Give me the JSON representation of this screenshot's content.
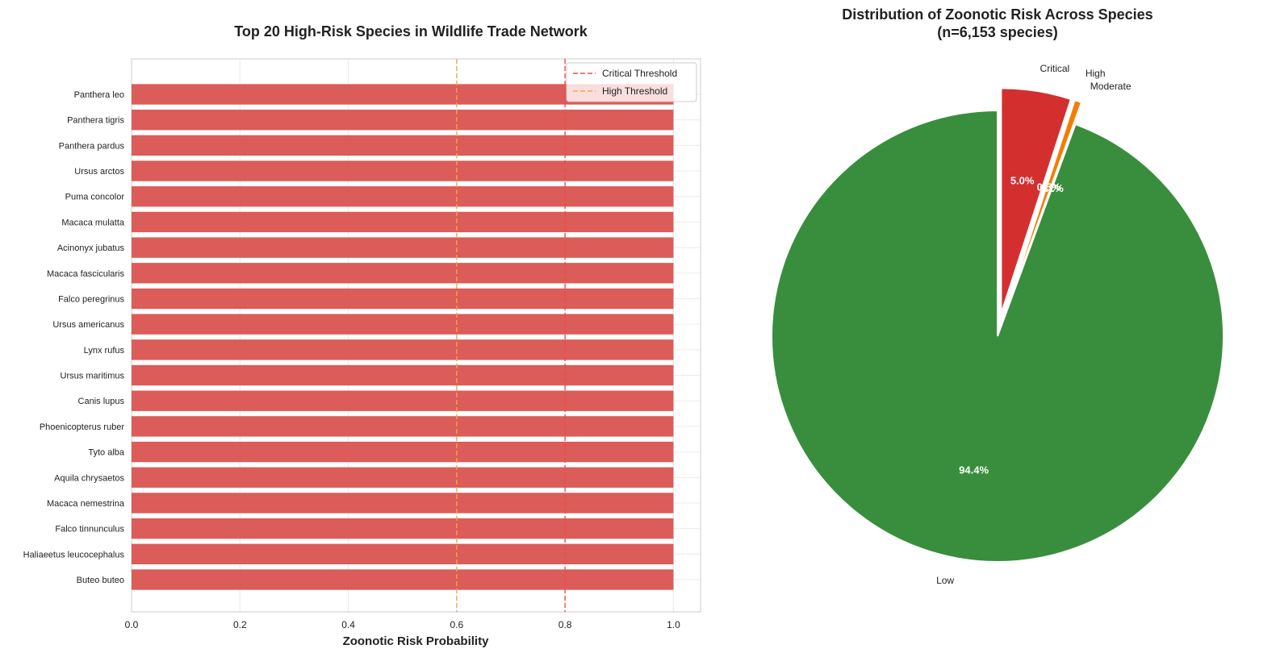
{
  "chart_data": [
    {
      "type": "bar",
      "orientation": "horizontal",
      "title": "Top 20 High-Risk Species in Wildlife Trade Network",
      "xlabel": "Zoonotic Risk Probability",
      "ylabel": "",
      "xlim": [
        0,
        1.05
      ],
      "xticks": [
        "0.0",
        "0.2",
        "0.4",
        "0.6",
        "0.8",
        "1.0"
      ],
      "grid": true,
      "legend_position": "top-right",
      "bar_color": "#d9534f",
      "categories": [
        "Panthera leo",
        "Panthera tigris",
        "Panthera pardus",
        "Ursus arctos",
        "Puma concolor",
        "Macaca mulatta",
        "Acinonyx jubatus",
        "Macaca fascicularis",
        "Falco peregrinus",
        "Ursus americanus",
        "Lynx rufus",
        "Ursus maritimus",
        "Canis lupus",
        "Phoenicopterus ruber",
        "Tyto alba",
        "Aquila chrysaetos",
        "Macaca nemestrina",
        "Falco tinnunculus",
        "Haliaeetus leucocephalus",
        "Buteo buteo"
      ],
      "values": [
        1.0,
        1.0,
        1.0,
        1.0,
        1.0,
        1.0,
        1.0,
        1.0,
        1.0,
        1.0,
        1.0,
        1.0,
        1.0,
        1.0,
        1.0,
        1.0,
        1.0,
        1.0,
        1.0,
        1.0
      ],
      "reference_lines": [
        {
          "name": "Critical Threshold",
          "value": 0.8,
          "color": "#e84c4c"
        },
        {
          "name": "High Threshold",
          "value": 0.6,
          "color": "#f5a54a"
        }
      ]
    },
    {
      "type": "pie",
      "title": "Distribution of Zoonotic Risk Across Species",
      "subtitle": "(n=6,153 species)",
      "labels": [
        "Critical",
        "High",
        "Moderate",
        "Low"
      ],
      "values": [
        5.0,
        0.5,
        0.1,
        94.4
      ],
      "pct_labels": [
        "5.0%",
        "0.5%",
        "0.1%",
        "94.4%"
      ],
      "colors": [
        "#d32f2f",
        "#f57c00",
        "#fbc02d",
        "#388e3c"
      ],
      "exploded": [
        "Critical",
        "High",
        "Moderate"
      ],
      "start_angle": 90,
      "direction": "clockwise"
    }
  ]
}
